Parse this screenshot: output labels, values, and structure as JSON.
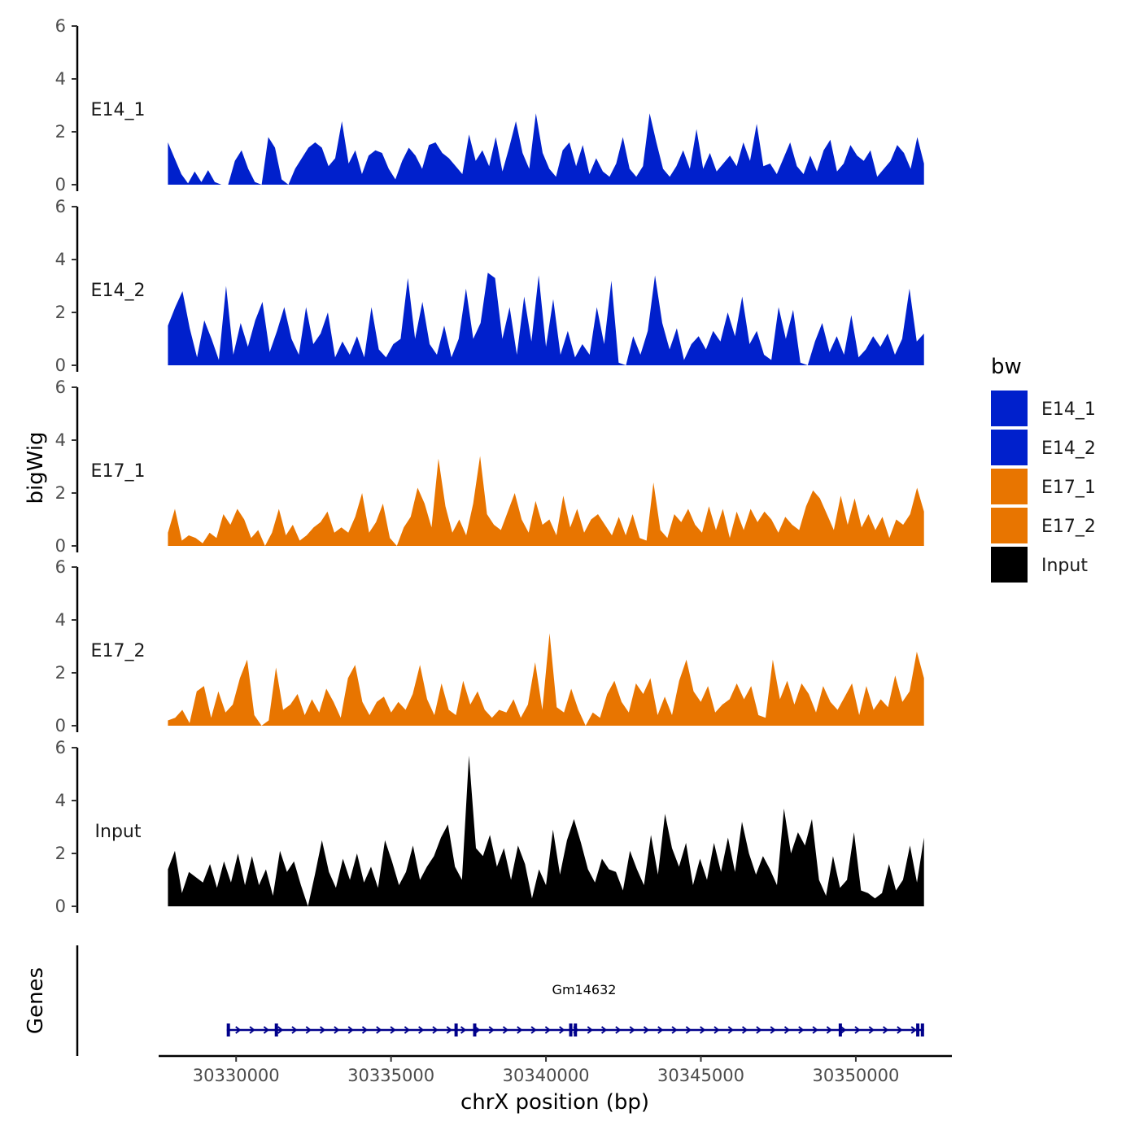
{
  "chart_data": {
    "type": "area",
    "chromosome": "chrX",
    "xlabel": "chrX position (bp)",
    "ylabel": "bigWig",
    "genes_label": "Genes",
    "xlim": [
      30327500,
      30353100
    ],
    "xticks": [
      30330000,
      30335000,
      30340000,
      30345000,
      30350000
    ],
    "xtick_labels": [
      "30330000",
      "30335000",
      "30340000",
      "30345000",
      "30350000"
    ],
    "ylim": [
      0,
      6
    ],
    "yticks": [
      0,
      2,
      4,
      6
    ],
    "ytick_labels": [
      "0",
      "2",
      "4",
      "6"
    ],
    "data_range": [
      30327800,
      30352200
    ],
    "series": [
      {
        "name": "E14_1",
        "color": "#0020CC",
        "values": [
          1.6,
          1.0,
          0.4,
          0.05,
          0.5,
          0.1,
          0.55,
          0.1,
          0.0,
          0.0,
          0.9,
          1.3,
          0.6,
          0.1,
          0.0,
          1.8,
          1.4,
          0.2,
          0.0,
          0.6,
          1.0,
          1.4,
          1.6,
          1.4,
          0.7,
          1.0,
          2.4,
          0.8,
          1.3,
          0.4,
          1.1,
          1.3,
          1.2,
          0.6,
          0.2,
          0.9,
          1.4,
          1.1,
          0.6,
          1.5,
          1.6,
          1.2,
          1.0,
          0.7,
          0.4,
          1.9,
          0.9,
          1.3,
          0.7,
          1.8,
          0.5,
          1.4,
          2.4,
          1.2,
          0.6,
          2.7,
          1.2,
          0.6,
          0.3,
          1.3,
          1.6,
          0.7,
          1.5,
          0.4,
          1.0,
          0.5,
          0.3,
          0.8,
          1.8,
          0.6,
          0.3,
          0.7,
          2.7,
          1.6,
          0.6,
          0.3,
          0.7,
          1.3,
          0.6,
          2.1,
          0.6,
          1.2,
          0.5,
          0.8,
          1.1,
          0.7,
          1.6,
          0.9,
          2.3,
          0.7,
          0.8,
          0.4,
          1.0,
          1.6,
          0.7,
          0.4,
          1.1,
          0.5,
          1.3,
          1.7,
          0.5,
          0.8,
          1.5,
          1.1,
          0.9,
          1.3,
          0.3,
          0.6,
          0.9,
          1.5,
          1.2,
          0.6,
          1.8,
          0.8
        ],
        "label": "E14_1"
      },
      {
        "name": "E14_2",
        "color": "#0020CC",
        "values": [
          1.5,
          2.2,
          2.8,
          1.4,
          0.3,
          1.7,
          1.0,
          0.2,
          3.0,
          0.4,
          1.6,
          0.7,
          1.7,
          2.4,
          0.5,
          1.3,
          2.2,
          1.0,
          0.4,
          2.2,
          0.8,
          1.2,
          2.0,
          0.3,
          0.9,
          0.4,
          1.1,
          0.3,
          2.2,
          0.6,
          0.3,
          0.8,
          1.0,
          3.3,
          1.0,
          2.4,
          0.8,
          0.4,
          1.5,
          0.3,
          1.0,
          2.9,
          1.0,
          1.6,
          3.5,
          3.3,
          1.0,
          2.2,
          0.4,
          2.6,
          0.9,
          3.4,
          0.7,
          2.5,
          0.4,
          1.3,
          0.3,
          0.8,
          0.4,
          2.2,
          0.8,
          3.2,
          0.1,
          0.0,
          1.1,
          0.4,
          1.3,
          3.4,
          1.6,
          0.6,
          1.4,
          0.2,
          0.8,
          1.1,
          0.6,
          1.3,
          0.9,
          2.0,
          1.1,
          2.6,
          0.8,
          1.3,
          0.4,
          0.2,
          2.2,
          1.0,
          2.1,
          0.1,
          0.0,
          0.9,
          1.6,
          0.5,
          1.1,
          0.4,
          1.9,
          0.3,
          0.6,
          1.1,
          0.7,
          1.2,
          0.4,
          1.0,
          2.9,
          0.9,
          1.2
        ],
        "label": "E14_2"
      },
      {
        "name": "E17_1",
        "color": "#E87500",
        "values": [
          0.5,
          1.4,
          0.2,
          0.4,
          0.3,
          0.1,
          0.5,
          0.3,
          1.2,
          0.8,
          1.4,
          1.0,
          0.3,
          0.6,
          0.0,
          0.5,
          1.4,
          0.4,
          0.8,
          0.2,
          0.4,
          0.7,
          0.9,
          1.3,
          0.5,
          0.7,
          0.5,
          1.1,
          2.0,
          0.5,
          0.9,
          1.6,
          0.3,
          0.0,
          0.7,
          1.1,
          2.2,
          1.6,
          0.7,
          3.3,
          1.5,
          0.5,
          1.0,
          0.4,
          1.6,
          3.4,
          1.2,
          0.8,
          0.6,
          1.3,
          2.0,
          1.0,
          0.5,
          1.7,
          0.8,
          1.0,
          0.4,
          1.9,
          0.7,
          1.4,
          0.5,
          1.0,
          1.2,
          0.8,
          0.4,
          1.1,
          0.4,
          1.2,
          0.3,
          0.2,
          2.4,
          0.6,
          0.3,
          1.2,
          0.9,
          1.4,
          0.8,
          0.5,
          1.5,
          0.6,
          1.4,
          0.3,
          1.3,
          0.6,
          1.4,
          0.9,
          1.3,
          1.0,
          0.5,
          1.1,
          0.8,
          0.6,
          1.5,
          2.1,
          1.8,
          1.2,
          0.6,
          1.9,
          0.8,
          1.8,
          0.7,
          1.2,
          0.6,
          1.1,
          0.3,
          1.0,
          0.8,
          1.2,
          2.2,
          1.3
        ],
        "label": "E17_1"
      },
      {
        "name": "E17_2",
        "color": "#E87500",
        "values": [
          0.2,
          0.3,
          0.6,
          0.1,
          1.3,
          1.5,
          0.3,
          1.3,
          0.5,
          0.8,
          1.8,
          2.5,
          0.4,
          0.0,
          0.2,
          2.2,
          0.6,
          0.8,
          1.2,
          0.4,
          1.0,
          0.5,
          1.4,
          0.9,
          0.3,
          1.8,
          2.3,
          0.9,
          0.4,
          0.9,
          1.1,
          0.5,
          0.9,
          0.6,
          1.2,
          2.3,
          1.0,
          0.4,
          1.6,
          0.6,
          0.4,
          1.7,
          0.8,
          1.3,
          0.6,
          0.3,
          0.6,
          0.5,
          1.0,
          0.3,
          0.8,
          2.4,
          0.6,
          3.5,
          0.7,
          0.5,
          1.4,
          0.6,
          0.0,
          0.5,
          0.3,
          1.2,
          1.7,
          0.9,
          0.5,
          1.6,
          1.2,
          1.8,
          0.4,
          1.1,
          0.4,
          1.7,
          2.5,
          1.3,
          0.9,
          1.5,
          0.5,
          0.8,
          1.0,
          1.6,
          1.0,
          1.5,
          0.4,
          0.3,
          2.5,
          1.0,
          1.7,
          0.8,
          1.6,
          1.2,
          0.5,
          1.5,
          0.9,
          0.6,
          1.1,
          1.6,
          0.4,
          1.5,
          0.6,
          1.0,
          0.7,
          1.9,
          0.9,
          1.3,
          2.8,
          1.8
        ],
        "label": "E17_2"
      },
      {
        "name": "Input",
        "color": "#000000",
        "values": [
          1.4,
          2.1,
          0.5,
          1.3,
          1.1,
          0.9,
          1.6,
          0.7,
          1.7,
          0.9,
          2.0,
          0.8,
          1.9,
          0.8,
          1.4,
          0.4,
          2.1,
          1.3,
          1.7,
          0.8,
          0.0,
          1.2,
          2.5,
          1.3,
          0.7,
          1.8,
          1.0,
          2.0,
          0.9,
          1.5,
          0.7,
          2.5,
          1.7,
          0.8,
          1.3,
          2.3,
          1.0,
          1.5,
          1.9,
          2.6,
          3.1,
          1.5,
          1.0,
          5.7,
          2.2,
          1.9,
          2.7,
          1.5,
          2.2,
          1.0,
          2.3,
          1.6,
          0.3,
          1.4,
          0.8,
          2.9,
          1.2,
          2.5,
          3.3,
          2.4,
          1.4,
          0.9,
          1.8,
          1.4,
          1.3,
          0.6,
          2.1,
          1.4,
          0.8,
          2.7,
          1.2,
          3.5,
          2.2,
          1.5,
          2.4,
          0.8,
          1.8,
          1.0,
          2.4,
          1.3,
          2.6,
          1.3,
          3.2,
          2.0,
          1.2,
          1.9,
          1.4,
          0.8,
          3.7,
          2.0,
          2.8,
          2.3,
          3.3,
          1.0,
          0.4,
          1.9,
          0.7,
          1.0,
          2.8,
          0.6,
          0.5,
          0.3,
          0.5,
          1.6,
          0.6,
          1.0,
          2.3,
          0.9,
          2.6
        ],
        "label": "Input"
      }
    ],
    "gene": {
      "name": "Gm14632",
      "start": 30329700,
      "end": 30352200,
      "strand": "+",
      "color": "#00008B",
      "exons": [
        30329750,
        30331300,
        30337100,
        30337700,
        30340800,
        30340950,
        30349500,
        30352000,
        30352150
      ]
    },
    "legend": {
      "title": "bw",
      "position": "right",
      "entries": [
        {
          "label": "E14_1",
          "color": "#0020CC"
        },
        {
          "label": "E14_2",
          "color": "#0020CC"
        },
        {
          "label": "E17_1",
          "color": "#E87500"
        },
        {
          "label": "E17_2",
          "color": "#E87500"
        },
        {
          "label": "Input",
          "color": "#000000"
        }
      ]
    }
  }
}
